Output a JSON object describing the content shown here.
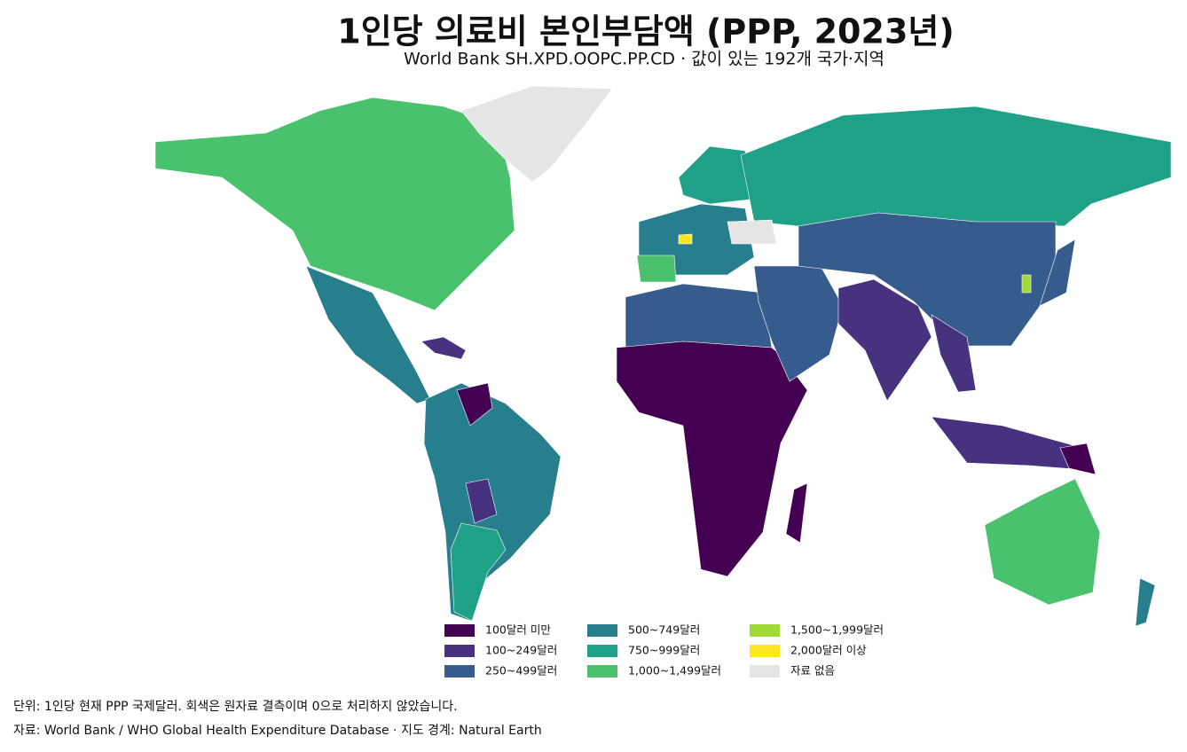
{
  "title": "1인당 의료비 본인부담액 (PPP, 2023년)",
  "subtitle": "World Bank SH.XPD.OOPC.PP.CD · 값이 있는 192개 국가·지역",
  "legend": [
    {
      "label": "100달러 미만",
      "color": "#440154"
    },
    {
      "label": "100~249달러",
      "color": "#46327e"
    },
    {
      "label": "250~499달러",
      "color": "#365c8d"
    },
    {
      "label": "500~749달러",
      "color": "#277f8e"
    },
    {
      "label": "750~999달러",
      "color": "#1fa187"
    },
    {
      "label": "1,000~1,499달러",
      "color": "#4ac16d"
    },
    {
      "label": "1,500~1,999달러",
      "color": "#a0da39"
    },
    {
      "label": "2,000달러 이상",
      "color": "#fde725"
    },
    {
      "label": "자료 없음",
      "color": "#e5e5e5"
    }
  ],
  "footnotes": [
    "단위: 1인당 현재 PPP 국제달러. 회색은 원자료 결측이며 0으로 처리하지 않았습니다.",
    "자료: World Bank / WHO Global Health Expenditure Database · 지도 경계: Natural Earth"
  ]
}
